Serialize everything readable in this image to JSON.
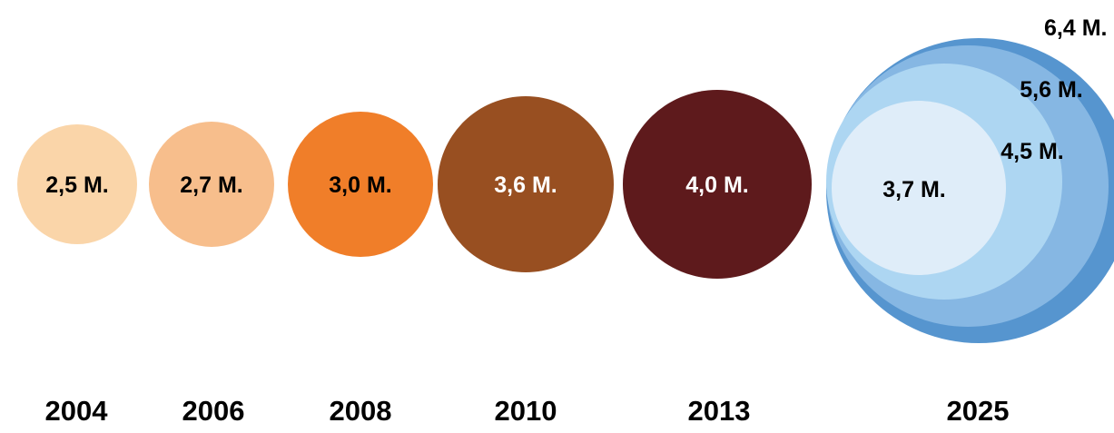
{
  "chart_data": {
    "type": "bubble",
    "categories": [
      "2004",
      "2006",
      "2008",
      "2010",
      "2013",
      "2025"
    ],
    "bubbles": [
      {
        "year": "2004",
        "value": 2.5,
        "label": "2,5 M.",
        "color": "#FAD5A9",
        "text_color": "#000000"
      },
      {
        "year": "2006",
        "value": 2.7,
        "label": "2,7 M.",
        "color": "#F7BE8C",
        "text_color": "#000000"
      },
      {
        "year": "2008",
        "value": 3.0,
        "label": "3,0 M.",
        "color": "#F07E29",
        "text_color": "#000000"
      },
      {
        "year": "2010",
        "value": 3.6,
        "label": "3,6 M.",
        "color": "#984F21",
        "text_color": "#ffffff"
      },
      {
        "year": "2013",
        "value": 4.0,
        "label": "4,0 M.",
        "color": "#5E1A1C",
        "text_color": "#ffffff"
      }
    ],
    "projection": {
      "year": "2025",
      "rings": [
        {
          "value": 6.4,
          "label": "6,4 M.",
          "color": "#5695CF"
        },
        {
          "value": 5.6,
          "label": "5,6 M.",
          "color": "#86B7E3"
        },
        {
          "value": 4.5,
          "label": "4,5 M.",
          "color": "#ADD6F2"
        },
        {
          "value": 3.7,
          "label": "3,7 M.",
          "color": "#DFEDF9"
        }
      ]
    },
    "title": "",
    "xlabel": "",
    "ylabel": ""
  }
}
